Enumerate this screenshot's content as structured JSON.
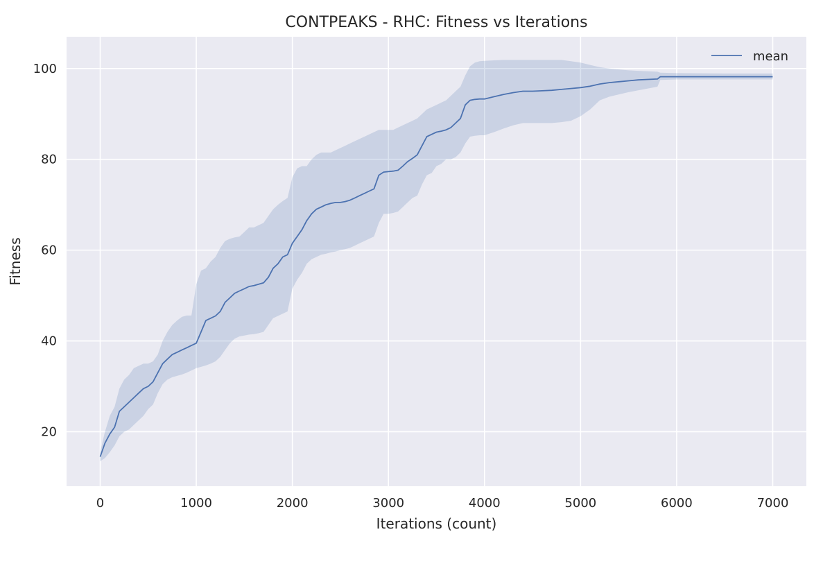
{
  "chart_data": {
    "type": "line",
    "title": "CONTPEAKS - RHC: Fitness vs Iterations",
    "xlabel": "Iterations (count)",
    "ylabel": "Fitness",
    "xlim": [
      -350,
      7350
    ],
    "ylim": [
      8,
      107
    ],
    "xticks": [
      0,
      1000,
      2000,
      3000,
      4000,
      5000,
      6000,
      7000
    ],
    "yticks": [
      20,
      40,
      60,
      80,
      100
    ],
    "grid": true,
    "legend_position": "top-right",
    "colors": {
      "background": "#eaeaf2",
      "grid": "#ffffff",
      "line": "#4c72b0",
      "band": "#4c72b0"
    },
    "series": [
      {
        "name": "mean",
        "x": [
          0,
          50,
          100,
          150,
          200,
          250,
          300,
          350,
          400,
          450,
          500,
          550,
          600,
          650,
          700,
          750,
          800,
          850,
          900,
          950,
          1000,
          1050,
          1100,
          1150,
          1200,
          1250,
          1300,
          1350,
          1400,
          1450,
          1500,
          1550,
          1600,
          1650,
          1700,
          1750,
          1800,
          1850,
          1900,
          1950,
          2000,
          2050,
          2100,
          2150,
          2200,
          2250,
          2300,
          2350,
          2400,
          2450,
          2500,
          2550,
          2600,
          2650,
          2700,
          2750,
          2800,
          2850,
          2900,
          2950,
          3000,
          3050,
          3100,
          3150,
          3200,
          3250,
          3300,
          3350,
          3400,
          3450,
          3500,
          3550,
          3600,
          3650,
          3700,
          3750,
          3800,
          3850,
          3900,
          3950,
          4000,
          4100,
          4200,
          4300,
          4400,
          4500,
          4600,
          4700,
          4800,
          4900,
          5000,
          5100,
          5200,
          5300,
          5400,
          5500,
          5600,
          5700,
          5800,
          5830,
          6000,
          6500,
          7000
        ],
        "y": [
          14.5,
          17.5,
          19.5,
          21,
          24.5,
          25.5,
          26.5,
          27.5,
          28.5,
          29.5,
          30,
          31,
          33,
          35,
          36,
          37,
          37.5,
          38,
          38.5,
          39,
          39.5,
          42,
          44.5,
          45,
          45.5,
          46.5,
          48.5,
          49.5,
          50.5,
          51,
          51.5,
          52,
          52.2,
          52.5,
          52.8,
          54,
          56,
          57,
          58.5,
          59,
          61.5,
          63,
          64.5,
          66.5,
          68,
          69,
          69.5,
          70,
          70.3,
          70.5,
          70.5,
          70.7,
          71,
          71.5,
          72,
          72.5,
          73,
          73.5,
          76.5,
          77.2,
          77.3,
          77.4,
          77.6,
          78.5,
          79.5,
          80.2,
          81,
          83,
          85,
          85.5,
          86,
          86.2,
          86.5,
          87,
          88,
          89,
          92,
          93,
          93.2,
          93.3,
          93.3,
          93.8,
          94.3,
          94.7,
          95.0,
          95.0,
          95.1,
          95.2,
          95.4,
          95.6,
          95.8,
          96.1,
          96.6,
          96.9,
          97.1,
          97.3,
          97.5,
          97.6,
          97.7,
          98.2,
          98.2,
          98.2,
          98.2
        ],
        "band_upper": [
          15.5,
          20,
          23.5,
          25.5,
          29.5,
          31.5,
          32.5,
          34,
          34.5,
          35,
          35,
          35.5,
          37,
          40,
          42,
          43.5,
          44.5,
          45.3,
          45.6,
          45.6,
          52.5,
          55.5,
          56,
          57.5,
          58.5,
          60.5,
          62,
          62.5,
          62.8,
          63,
          64,
          65,
          65,
          65.5,
          66,
          67.5,
          69,
          70,
          70.8,
          71.5,
          76,
          78,
          78.5,
          78.5,
          80,
          81,
          81.5,
          81.5,
          81.5,
          82,
          82.5,
          83,
          83.5,
          84,
          84.5,
          85,
          85.5,
          86,
          86.5,
          86.5,
          86.5,
          86.5,
          87,
          87.5,
          88,
          88.5,
          89,
          90,
          91,
          91.5,
          92,
          92.5,
          93,
          94,
          95,
          96,
          98.5,
          100.5,
          101.3,
          101.6,
          101.7,
          101.8,
          101.9,
          101.9,
          101.9,
          101.9,
          101.9,
          101.9,
          101.9,
          101.6,
          101.3,
          100.8,
          100.3,
          100,
          99.8,
          99.6,
          99.5,
          99.4,
          99.3,
          99.1,
          99.0,
          98.9,
          98.9
        ],
        "band_lower": [
          13.5,
          14.2,
          15.5,
          17,
          19,
          20,
          20.5,
          21.5,
          22.5,
          23.5,
          25,
          26,
          28.5,
          30.5,
          31.5,
          32,
          32.3,
          32.6,
          33,
          33.5,
          34,
          34.3,
          34.6,
          35,
          35.5,
          36.5,
          38,
          39.5,
          40.5,
          41,
          41.2,
          41.4,
          41.5,
          41.7,
          42,
          43.5,
          45,
          45.5,
          46,
          46.5,
          51.5,
          53.5,
          55,
          57,
          58,
          58.5,
          59,
          59.2,
          59.5,
          59.7,
          60,
          60.2,
          60.5,
          61,
          61.5,
          62,
          62.5,
          63,
          66,
          68,
          68,
          68.2,
          68.5,
          69.5,
          70.5,
          71.5,
          72,
          74.5,
          76.5,
          77,
          78.5,
          79,
          80,
          80,
          80.5,
          81.5,
          83.5,
          85,
          85.2,
          85.3,
          85.3,
          86,
          86.8,
          87.5,
          88,
          88,
          88,
          88,
          88.2,
          88.5,
          89.5,
          91,
          93,
          93.8,
          94.3,
          94.8,
          95.2,
          95.6,
          96,
          97.5,
          97.6,
          97.6,
          97.6
        ]
      }
    ]
  }
}
